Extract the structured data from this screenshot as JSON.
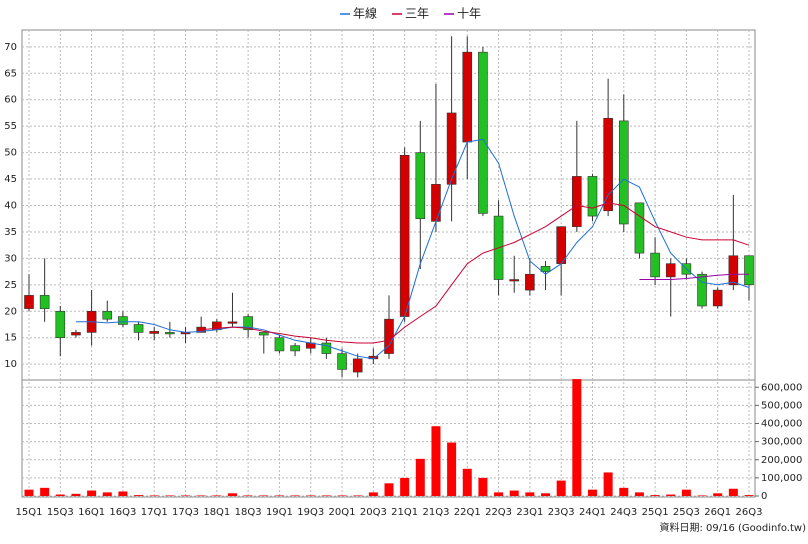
{
  "chart_data": {
    "type": "candlestick",
    "categories": [
      "15Q1",
      null,
      "15Q3",
      null,
      "16Q1",
      null,
      "16Q3",
      null,
      "17Q1",
      null,
      "17Q3",
      null,
      "18Q1",
      null,
      "18Q3",
      null,
      "19Q1",
      null,
      "19Q3",
      null,
      "20Q1",
      null,
      "20Q3",
      null,
      "21Q1",
      null,
      "21Q3",
      null,
      "22Q1",
      null,
      "22Q3",
      null,
      "23Q1",
      null,
      "23Q3",
      null,
      "24Q1",
      null,
      "24Q3",
      null,
      "25Q1",
      null,
      "25Q3",
      null,
      "26Q1",
      null,
      "26Q3"
    ],
    "open": [
      20.5,
      23,
      20,
      15.5,
      16,
      20,
      19,
      17.5,
      15.8,
      16,
      15.8,
      16,
      16.5,
      18,
      19,
      16,
      15,
      13.5,
      13,
      14,
      12,
      8.5,
      11,
      12,
      19,
      50,
      37,
      44,
      52,
      69,
      38,
      26,
      24,
      28.5,
      29,
      36,
      45.5,
      39,
      56,
      40.5,
      31,
      26.5,
      29,
      27,
      21,
      25,
      30.5
    ],
    "high": [
      27,
      30,
      21,
      16.5,
      24,
      22,
      20,
      18,
      17,
      18,
      17,
      19,
      18.5,
      23.5,
      19.5,
      16,
      15.5,
      14,
      15,
      15,
      13,
      12,
      13,
      23,
      51,
      56,
      63,
      72,
      72,
      70,
      41,
      30.5,
      30,
      29.5,
      36,
      56,
      46,
      64,
      61,
      40.5,
      34,
      30,
      30,
      27.5,
      24.5,
      42,
      30.5
    ],
    "low": [
      20,
      18,
      11.5,
      15,
      13.5,
      18,
      17,
      14.5,
      14.5,
      15,
      14,
      16,
      16,
      17,
      15,
      12,
      12,
      11.5,
      12,
      11,
      7.5,
      7.5,
      10,
      11,
      18,
      28,
      35,
      37,
      45,
      38,
      23,
      23.5,
      23,
      24,
      23,
      35,
      37,
      38,
      35,
      30,
      25,
      19,
      26,
      20.5,
      20.5,
      24,
      22
    ],
    "close": [
      23,
      20.5,
      15,
      16,
      20,
      18.5,
      17.5,
      16,
      16.2,
      15.8,
      16,
      17,
      18,
      18,
      16.5,
      15.5,
      12.5,
      12.5,
      14,
      12,
      9,
      11,
      11.5,
      18.5,
      49.5,
      37.5,
      44,
      57.5,
      69,
      38.5,
      26,
      26,
      27,
      27.5,
      36,
      45.5,
      38,
      56.5,
      36.5,
      31,
      26.5,
      29,
      27,
      21,
      24,
      30.5,
      25
    ],
    "up_color": "#d40000",
    "down_color": "#22c022",
    "lines": [
      {
        "name": "年線",
        "color": "#1e6fd9",
        "values": [
          null,
          null,
          null,
          18,
          18,
          17.8,
          18,
          18,
          17.5,
          16.5,
          16,
          16.2,
          16.5,
          17,
          17,
          16.5,
          15.5,
          14.5,
          14,
          13.5,
          12.5,
          11.5,
          11,
          13.5,
          19,
          29,
          37,
          45,
          52,
          52.5,
          48,
          38,
          29.5,
          27,
          29,
          33,
          36,
          42,
          45,
          43.5,
          37,
          31,
          28,
          25.5,
          25,
          25.5,
          24.5
        ]
      },
      {
        "name": "三年",
        "color": "#cc0033",
        "values": [
          null,
          null,
          null,
          null,
          null,
          null,
          null,
          null,
          null,
          null,
          null,
          16.5,
          16.8,
          17,
          16.8,
          16.2,
          15.8,
          15.3,
          15,
          14.5,
          14.2,
          14,
          14,
          14.5,
          17,
          19,
          21,
          25,
          29,
          31,
          32,
          33,
          34.5,
          36,
          38,
          40,
          39.5,
          40.5,
          40,
          38,
          36,
          35,
          34,
          33.5,
          33.5,
          33.5,
          32.5
        ]
      },
      {
        "name": "十年",
        "color": "#9900aa",
        "values": [
          null,
          null,
          null,
          null,
          null,
          null,
          null,
          null,
          null,
          null,
          null,
          null,
          null,
          null,
          null,
          null,
          null,
          null,
          null,
          null,
          null,
          null,
          null,
          null,
          null,
          null,
          null,
          null,
          null,
          null,
          null,
          null,
          null,
          null,
          null,
          null,
          null,
          null,
          null,
          26,
          26,
          26,
          26.2,
          26.5,
          26.8,
          27,
          27
        ]
      }
    ],
    "ylim": [
      7,
      73
    ],
    "yticks": [
      10,
      15,
      20,
      25,
      30,
      35,
      40,
      45,
      50,
      55,
      60,
      65,
      70
    ],
    "volume": {
      "color": "#ff0000",
      "values": [
        35000,
        45000,
        8000,
        12000,
        30000,
        20000,
        25000,
        5000,
        3000,
        3000,
        3000,
        3000,
        3000,
        15000,
        3000,
        3000,
        3000,
        3000,
        3000,
        3000,
        3000,
        3000,
        20000,
        70000,
        100000,
        205000,
        385000,
        295000,
        150000,
        100000,
        20000,
        30000,
        20000,
        15000,
        85000,
        645000,
        35000,
        130000,
        45000,
        20000,
        5000,
        8000,
        35000,
        3000,
        15000,
        40000,
        5000
      ],
      "ylim": [
        0,
        640000
      ],
      "yticks": [
        0,
        {
          "value": 100000,
          "label": "100,000"
        },
        {
          "value": 200000,
          "label": "200,000"
        },
        {
          "value": 300000,
          "label": "300,000"
        },
        {
          "value": 400000,
          "label": "400,000"
        },
        {
          "value": 500000,
          "label": "500,000"
        },
        {
          "value": 600000,
          "label": "600,000"
        }
      ]
    },
    "grid": true,
    "footnote": "資料日期: 09/16  (Goodinfo.tw)"
  }
}
